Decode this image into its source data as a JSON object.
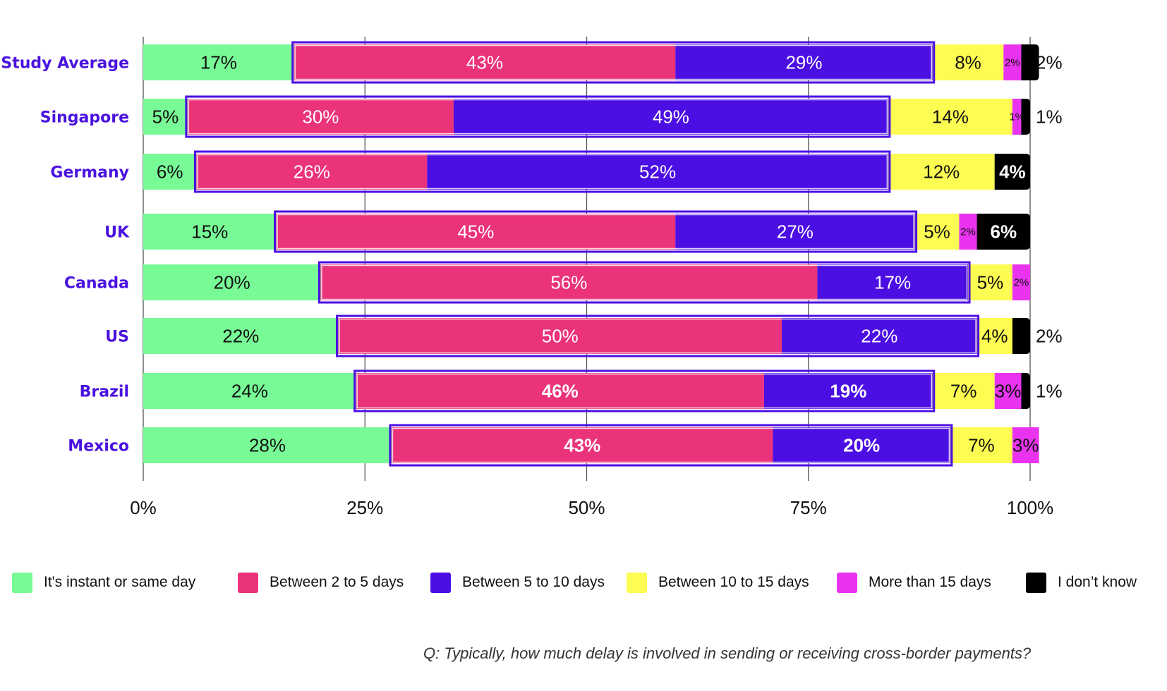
{
  "chart_data": {
    "type": "bar",
    "orientation": "horizontal",
    "stacked": true,
    "title": "",
    "xlabel": "",
    "ylabel": "",
    "xlim": [
      0,
      100
    ],
    "x_ticks": [
      "0%",
      "25%",
      "50%",
      "75%",
      "100%"
    ],
    "x_tick_values": [
      0,
      25,
      50,
      75,
      100
    ],
    "grid": true,
    "legend_position": "bottom",
    "categories": [
      "Study Average",
      "Singapore",
      "Germany",
      "UK",
      "Canada",
      "US",
      "Brazil",
      "Mexico"
    ],
    "series": [
      {
        "name": "It's instant or same day",
        "color": "#78fa96",
        "label_color": "#111111",
        "values": [
          17,
          5,
          6,
          15,
          20,
          22,
          24,
          28
        ]
      },
      {
        "name": "Between 2 to 5 days",
        "color": "#ea337a",
        "label_color": "#ffffff",
        "values": [
          43,
          30,
          26,
          45,
          56,
          50,
          46,
          43
        ]
      },
      {
        "name": "Between 5 to 10 days",
        "color": "#4b0ee3",
        "label_color": "#ffffff",
        "values": [
          29,
          49,
          52,
          27,
          17,
          22,
          19,
          20
        ]
      },
      {
        "name": "Between 10 to 15 days",
        "color": "#fcfc52",
        "label_color": "#111111",
        "values": [
          8,
          14,
          12,
          5,
          5,
          4,
          7,
          7
        ]
      },
      {
        "name": "More than 15 days",
        "color": "#e933ef",
        "label_color": "#111111",
        "values": [
          2,
          1,
          0,
          2,
          2,
          0,
          3,
          3
        ]
      },
      {
        "name": "I don't know",
        "color": "#000000",
        "label_color": "#ffffff",
        "values": [
          2,
          1,
          4,
          6,
          0,
          2,
          1,
          0
        ]
      }
    ],
    "highlight_outline": {
      "series": [
        "Between 2 to 5 days",
        "Between 5 to 10 days"
      ],
      "color": "#4b0ee3"
    },
    "outside_labels": [
      {
        "category": "Study Average",
        "series": "I don't know",
        "text": "2%"
      },
      {
        "category": "Singapore",
        "series": "I don't know",
        "text": "1%"
      },
      {
        "category": "US",
        "series": "I don't know",
        "text": "2%"
      },
      {
        "category": "Brazil",
        "series": "I don't know",
        "text": "1%"
      }
    ],
    "footnote": "Q: Typically, how much delay is involved in sending or receiving cross-border payments?"
  },
  "colors": {
    "category_label": "#4a12e0",
    "axis_line": "#555555"
  },
  "legend": [
    {
      "label": "It's instant or same day",
      "color": "#78fa96"
    },
    {
      "label": "Between 2 to 5 days",
      "color": "#ea337a"
    },
    {
      "label": "Between 5 to 10 days",
      "color": "#4b0ee3"
    },
    {
      "label": "Between 10 to 15 days",
      "color": "#fcfc52"
    },
    {
      "label": "More than 15 days",
      "color": "#e933ef"
    },
    {
      "label": "I don’t know",
      "color": "#000000"
    }
  ],
  "footnote": "Q: Typically, how much delay is involved in sending or receiving cross-border payments?"
}
